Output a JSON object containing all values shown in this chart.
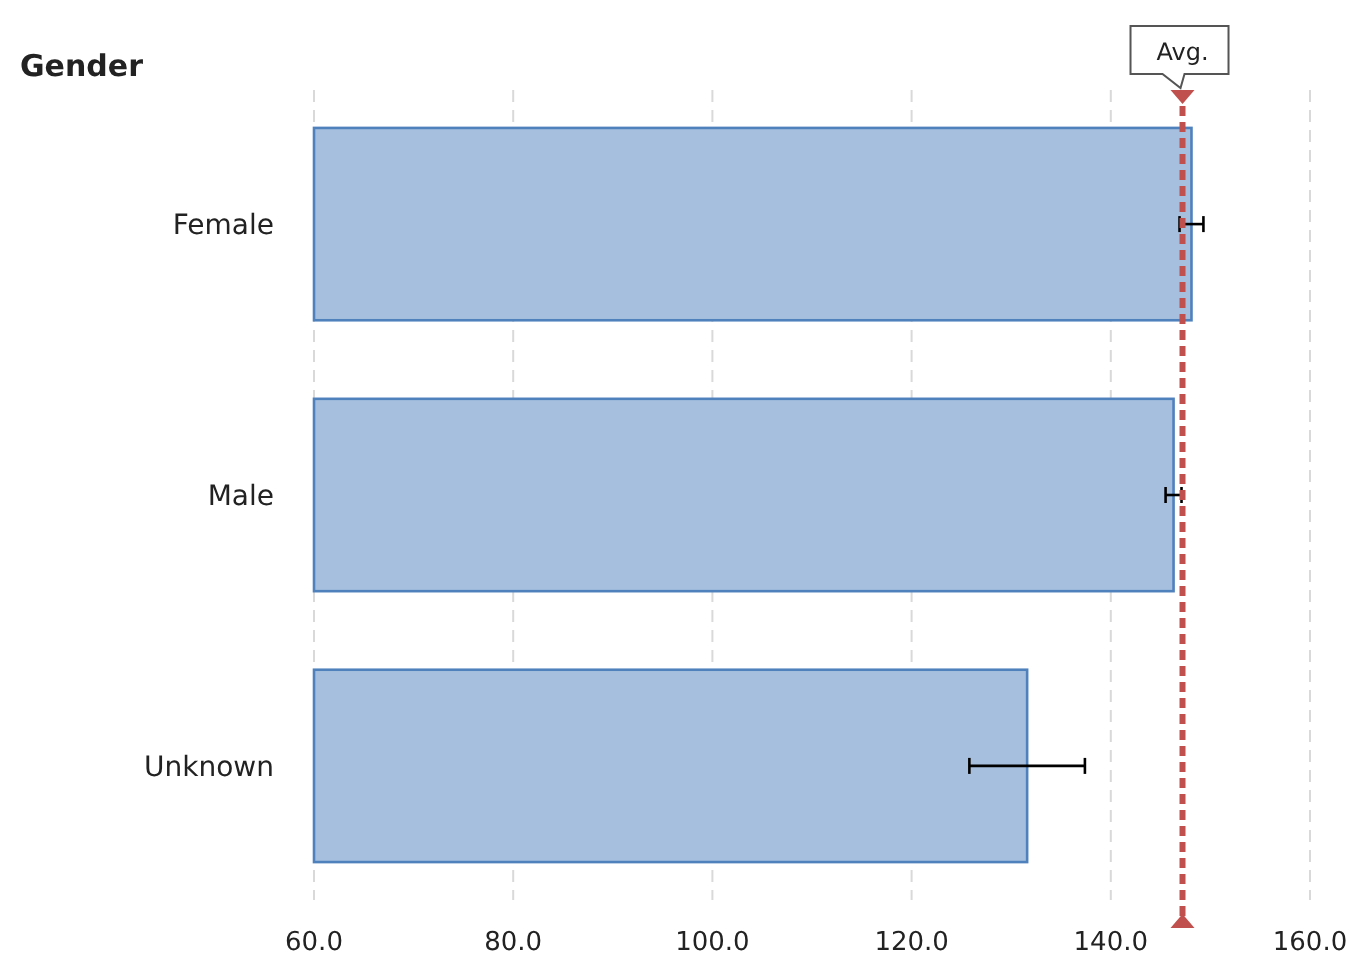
{
  "chart_data": {
    "type": "bar",
    "orientation": "horizontal",
    "title": "Gender",
    "categories": [
      "Female",
      "Male",
      "Unknown"
    ],
    "values": [
      148.1,
      146.3,
      131.6
    ],
    "color": "#a7bfde",
    "errors": [
      1.2,
      0.8,
      5.8
    ],
    "xlim": [
      60,
      160
    ],
    "xticks": [
      {
        "value": 60,
        "label": "60.0"
      },
      {
        "value": 80,
        "label": "80.0"
      },
      {
        "value": 100,
        "label": "100.0"
      },
      {
        "value": 120,
        "label": "120.0"
      },
      {
        "value": 140,
        "label": "140.0"
      },
      {
        "value": 160,
        "label": "160.0"
      }
    ],
    "grid": "x",
    "ref_lines": [
      {
        "axis": "x",
        "value": 147.2,
        "label": "Avg.",
        "color": "#c0504d",
        "line_style": "dashed"
      }
    ]
  }
}
